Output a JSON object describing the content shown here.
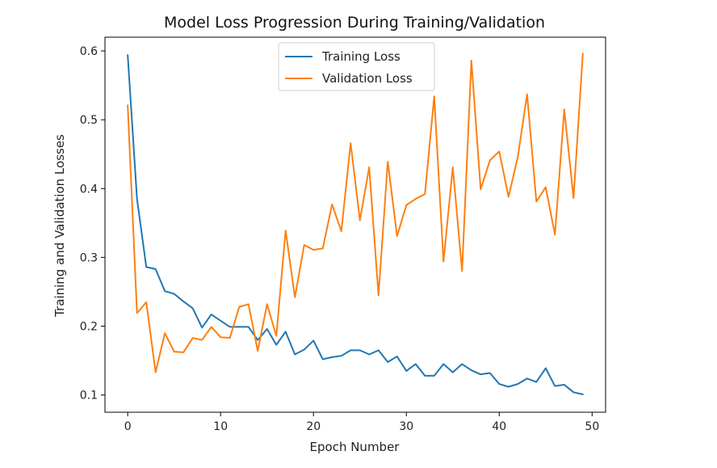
{
  "chart_data": {
    "type": "line",
    "title": "Model Loss Progression During Training/Validation",
    "xlabel": "Epoch Number",
    "ylabel": "Training and Validation Losses",
    "xlim": [
      -2.45,
      51.45
    ],
    "ylim": [
      0.075,
      0.62
    ],
    "xticks": [
      0,
      10,
      20,
      30,
      40,
      50
    ],
    "yticks": [
      0.1,
      0.2,
      0.3,
      0.4,
      0.5,
      0.6
    ],
    "xtick_labels": [
      "0",
      "10",
      "20",
      "30",
      "40",
      "50"
    ],
    "ytick_labels": [
      "0.1",
      "0.2",
      "0.3",
      "0.4",
      "0.5",
      "0.6"
    ],
    "grid": false,
    "legend_position": "upper-center",
    "x": [
      0,
      1,
      2,
      3,
      4,
      5,
      6,
      7,
      8,
      9,
      10,
      11,
      12,
      13,
      14,
      15,
      16,
      17,
      18,
      19,
      20,
      21,
      22,
      23,
      24,
      25,
      26,
      27,
      28,
      29,
      30,
      31,
      32,
      33,
      34,
      35,
      36,
      37,
      38,
      39,
      40,
      41,
      42,
      43,
      44,
      45,
      46,
      47,
      48,
      49
    ],
    "series": [
      {
        "name": "Training Loss",
        "color": "#1f77b4",
        "values": [
          0.594,
          0.385,
          0.286,
          0.283,
          0.251,
          0.247,
          0.236,
          0.226,
          0.198,
          0.217,
          0.208,
          0.199,
          0.199,
          0.199,
          0.18,
          0.196,
          0.173,
          0.192,
          0.159,
          0.166,
          0.179,
          0.152,
          0.155,
          0.157,
          0.165,
          0.165,
          0.159,
          0.165,
          0.148,
          0.156,
          0.135,
          0.145,
          0.128,
          0.128,
          0.145,
          0.133,
          0.145,
          0.136,
          0.13,
          0.132,
          0.116,
          0.112,
          0.116,
          0.124,
          0.119,
          0.139,
          0.113,
          0.115,
          0.104,
          0.101
        ]
      },
      {
        "name": "Validation Loss",
        "color": "#ff7f0e",
        "values": [
          0.521,
          0.219,
          0.235,
          0.133,
          0.19,
          0.163,
          0.162,
          0.183,
          0.18,
          0.199,
          0.184,
          0.183,
          0.228,
          0.232,
          0.164,
          0.232,
          0.186,
          0.339,
          0.242,
          0.318,
          0.311,
          0.313,
          0.377,
          0.338,
          0.466,
          0.354,
          0.431,
          0.245,
          0.439,
          0.331,
          0.376,
          0.385,
          0.392,
          0.534,
          0.294,
          0.431,
          0.28,
          0.586,
          0.399,
          0.441,
          0.454,
          0.388,
          0.446,
          0.537,
          0.381,
          0.402,
          0.333,
          0.515,
          0.386,
          0.596
        ]
      }
    ]
  }
}
